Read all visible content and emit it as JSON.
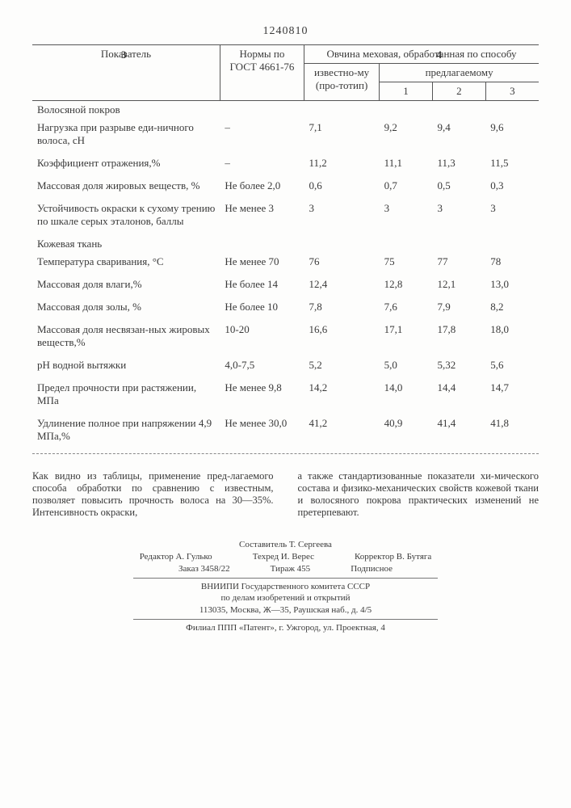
{
  "header": {
    "left_col": "3",
    "patent_no": "1240810",
    "right_col": "4"
  },
  "table": {
    "col_indicator": "Показатель",
    "col_gost": "Нормы по ГОСТ 4661-76",
    "col_treated": "Овчина меховая, обработанная по способу",
    "col_known": "известно-му (про-тотип)",
    "col_proposed": "предлагаемому",
    "p1": "1",
    "p2": "2",
    "p3": "3",
    "section_hair": "Волосяной покров",
    "rows_hair": [
      {
        "label": "Нагрузка при разрыве еди-ничного волоса, сН",
        "gost": "–",
        "known": "7,1",
        "v1": "9,2",
        "v2": "9,4",
        "v3": "9,6"
      },
      {
        "label": "Коэффициент отражения,%",
        "gost": "–",
        "known": "11,2",
        "v1": "11,1",
        "v2": "11,3",
        "v3": "11,5"
      },
      {
        "label": "Массовая доля жировых веществ, %",
        "gost": "Не более 2,0",
        "known": "0,6",
        "v1": "0,7",
        "v2": "0,5",
        "v3": "0,3"
      },
      {
        "label": "Устойчивость окраски к сухому трению по шкале серых эталонов, баллы",
        "gost": "Не менее 3",
        "known": "3",
        "v1": "3",
        "v2": "3",
        "v3": "3"
      }
    ],
    "section_skin": "Кожевая ткань",
    "rows_skin": [
      {
        "label": "Температура сваривания, °С",
        "gost": "Не менее 70",
        "known": "76",
        "v1": "75",
        "v2": "77",
        "v3": "78"
      },
      {
        "label": "Массовая доля влаги,%",
        "gost": "Не более 14",
        "known": "12,4",
        "v1": "12,8",
        "v2": "12,1",
        "v3": "13,0"
      },
      {
        "label": "Массовая доля золы, %",
        "gost": "Не более 10",
        "known": "7,8",
        "v1": "7,6",
        "v2": "7,9",
        "v3": "8,2"
      },
      {
        "label": "Массовая доля несвязан-ных жировых веществ,%",
        "gost": "10-20",
        "known": "16,6",
        "v1": "17,1",
        "v2": "17,8",
        "v3": "18,0"
      },
      {
        "label": "pH водной вытяжки",
        "gost": "4,0-7,5",
        "known": "5,2",
        "v1": "5,0",
        "v2": "5,32",
        "v3": "5,6"
      },
      {
        "label": "Предел прочности при растяжении, МПа",
        "gost": "Не менее 9,8",
        "known": "14,2",
        "v1": "14,0",
        "v2": "14,4",
        "v3": "14,7"
      },
      {
        "label": "Удлинение полное при напряжении 4,9 МПа,%",
        "gost": "Не менее 30,0",
        "known": "41,2",
        "v1": "40,9",
        "v2": "41,4",
        "v3": "41,8"
      }
    ]
  },
  "footer": {
    "left": "Как видно из таблицы, применение пред-лагаемого способа обработки по сравнению с известным, позволяет повысить прочность волоса на 30—35%. Интенсивность окраски,",
    "right": "а также стандартизованные показатели хи-мического состава и физико-механических свойств кожевой ткани и волосяного покрова практических изменений не претерпевают."
  },
  "credits": {
    "compiler": "Составитель Т. Сергеева",
    "editor": "Редактор А. Гулько",
    "techred": "Техред И. Верес",
    "corrector": "Корректор В. Бутяга",
    "order": "Заказ 3458/22",
    "tirazh": "Тираж 455",
    "podpisnoe": "Подписное",
    "org1": "ВНИИПИ Государственного комитета СССР",
    "org2": "по делам изобретений и открытий",
    "addr1": "113035, Москва, Ж—35, Раушская наб., д. 4/5",
    "addr2": "Филиал ППП «Патент», г. Ужгород, ул. Проектная, 4"
  }
}
